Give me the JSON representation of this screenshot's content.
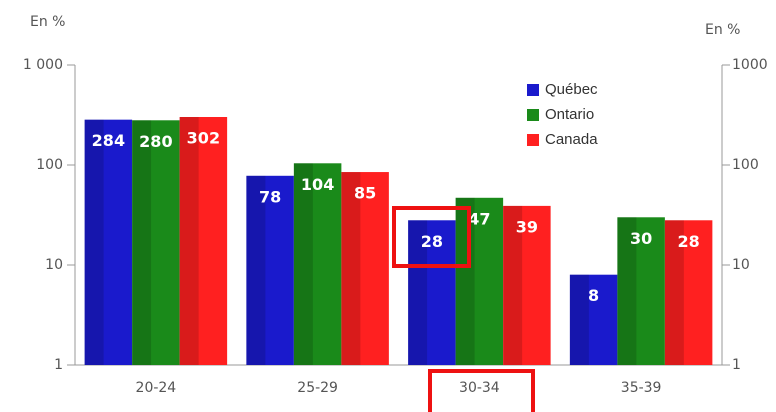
{
  "chart_data": {
    "type": "bar",
    "ylabel": "En %",
    "y2label": "En %",
    "categories": [
      "20-24",
      "25-29",
      "30-34",
      "35-39"
    ],
    "series": [
      {
        "name": "Québec",
        "color": "#1a1acc",
        "values": [
          284,
          78,
          28,
          8
        ]
      },
      {
        "name": "Ontario",
        "color": "#1a8a1a",
        "values": [
          280,
          104,
          47,
          30
        ]
      },
      {
        "name": "Canada",
        "color": "#ff2020",
        "values": [
          302,
          85,
          39,
          28
        ]
      }
    ],
    "log_scale": true,
    "ylim": [
      1,
      1000
    ],
    "yticks": [
      1,
      10,
      100,
      {
        "value": 1000,
        "label": "1 000"
      }
    ],
    "y2lim": [
      1,
      1000
    ],
    "y2ticks": [
      1,
      10,
      100,
      1000
    ],
    "grid": false,
    "legend": "upper right"
  }
}
